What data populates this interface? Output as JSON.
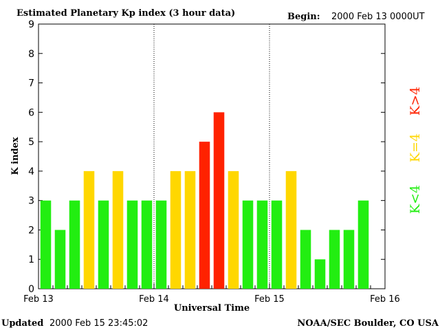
{
  "header": {
    "title": "Estimated Planetary Kp index (3 hour data)",
    "begin_label": "Begin:",
    "begin_value": "2000 Feb 13 0000UT"
  },
  "footer": {
    "updated_label": "Updated",
    "updated_value": "2000 Feb 15 23:45:02",
    "source": "NOAA/SEC Boulder, CO USA"
  },
  "legend": {
    "low": "K<4",
    "equal": "K=4",
    "high": "K>4"
  },
  "colors": {
    "low": "#22ee11",
    "equal": "#ffd700",
    "high": "#ff2200"
  },
  "chart_data": {
    "type": "bar",
    "title": "Estimated Planetary Kp index (3 hour data)",
    "xlabel": "Universal Time",
    "ylabel": "K index",
    "ylim": [
      0,
      9
    ],
    "yticks": [
      0,
      1,
      2,
      3,
      4,
      5,
      6,
      7,
      8,
      9
    ],
    "xtick_labels": [
      "Feb 13",
      "Feb 14",
      "Feb 15",
      "Feb 16"
    ],
    "interval_hours": 3,
    "values": [
      3,
      2,
      3,
      4,
      3,
      4,
      3,
      3,
      3,
      4,
      4,
      5,
      6,
      4,
      3,
      3,
      3,
      4,
      2,
      1,
      2,
      2,
      3
    ],
    "grid": "dotted vertical lines at day boundaries"
  }
}
